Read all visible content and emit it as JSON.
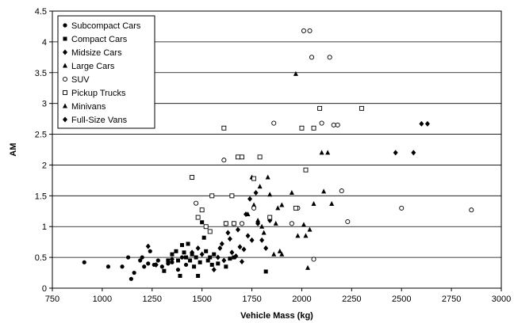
{
  "chart_data": {
    "type": "scatter",
    "xlabel": "Vehicle Mass (kg)",
    "ylabel": "AM",
    "xlim": [
      750,
      3000
    ],
    "ylim": [
      0,
      4.5
    ],
    "xticks": [
      "750",
      "1000",
      "1250",
      "1500",
      "1750",
      "2000",
      "2250",
      "2500",
      "2750",
      "3000"
    ],
    "yticks": [
      "0",
      "0.5",
      "1",
      "1.5",
      "2",
      "2.5",
      "3",
      "3.5",
      "4",
      "4.5"
    ],
    "grid": "horizontal",
    "legend_position": "top-left",
    "series": [
      {
        "name": "Subcompact Cars",
        "marker": "circle-filled",
        "points": [
          [
            910,
            0.42
          ],
          [
            1030,
            0.35
          ],
          [
            1100,
            0.35
          ],
          [
            1130,
            0.5
          ],
          [
            1145,
            0.15
          ],
          [
            1160,
            0.25
          ],
          [
            1190,
            0.45
          ],
          [
            1200,
            0.5
          ],
          [
            1210,
            0.35
          ],
          [
            1230,
            0.4
          ],
          [
            1240,
            0.6
          ],
          [
            1260,
            0.38
          ],
          [
            1280,
            0.45
          ],
          [
            1300,
            0.35
          ],
          [
            1330,
            0.4
          ],
          [
            1350,
            0.42
          ],
          [
            1380,
            0.3
          ],
          [
            1400,
            0.5
          ],
          [
            1420,
            0.38
          ]
        ]
      },
      {
        "name": "Compact Cars",
        "marker": "square-filled",
        "points": [
          [
            1310,
            0.28
          ],
          [
            1330,
            0.45
          ],
          [
            1350,
            0.55
          ],
          [
            1370,
            0.6
          ],
          [
            1380,
            0.45
          ],
          [
            1390,
            0.2
          ],
          [
            1400,
            0.7
          ],
          [
            1410,
            0.58
          ],
          [
            1420,
            0.5
          ],
          [
            1430,
            0.72
          ],
          [
            1440,
            0.45
          ],
          [
            1450,
            0.55
          ],
          [
            1460,
            0.35
          ],
          [
            1470,
            0.5
          ],
          [
            1480,
            0.2
          ],
          [
            1490,
            0.42
          ],
          [
            1500,
            1.07
          ],
          [
            1510,
            0.82
          ],
          [
            1520,
            0.6
          ],
          [
            1530,
            0.45
          ],
          [
            1540,
            0.5
          ],
          [
            1550,
            0.38
          ],
          [
            1560,
            0.55
          ],
          [
            1580,
            0.4
          ],
          [
            1620,
            0.35
          ],
          [
            1640,
            0.48
          ],
          [
            1660,
            0.5
          ],
          [
            1820,
            0.27
          ]
        ]
      },
      {
        "name": "Midsize Cars",
        "marker": "diamond-filled",
        "points": [
          [
            1230,
            0.68
          ],
          [
            1270,
            0.38
          ],
          [
            1350,
            0.47
          ],
          [
            1450,
            0.58
          ],
          [
            1480,
            0.65
          ],
          [
            1500,
            0.55
          ],
          [
            1560,
            0.3
          ],
          [
            1580,
            0.5
          ],
          [
            1590,
            0.65
          ],
          [
            1600,
            0.72
          ],
          [
            1610,
            0.45
          ],
          [
            1620,
            1.05
          ],
          [
            1630,
            0.9
          ],
          [
            1640,
            0.8
          ],
          [
            1650,
            0.58
          ],
          [
            1660,
            1.05
          ],
          [
            1670,
            0.52
          ],
          [
            1680,
            0.95
          ],
          [
            1690,
            0.67
          ],
          [
            1700,
            0.43
          ],
          [
            1710,
            0.63
          ],
          [
            1720,
            1.2
          ],
          [
            1730,
            0.85
          ],
          [
            1740,
            1.45
          ],
          [
            1750,
            0.78
          ],
          [
            1770,
            1.55
          ],
          [
            1780,
            1.05
          ],
          [
            1800,
            0.78
          ],
          [
            1820,
            0.65
          ],
          [
            1840,
            1.1
          ]
        ]
      },
      {
        "name": "Large Cars",
        "marker": "triangle-filled",
        "points": [
          [
            1730,
            1.2
          ],
          [
            1750,
            1.8
          ],
          [
            1760,
            1.35
          ],
          [
            1780,
            1.1
          ],
          [
            1790,
            1.65
          ],
          [
            1800,
            1.0
          ],
          [
            1810,
            0.9
          ],
          [
            1830,
            1.8
          ],
          [
            1860,
            0.55
          ],
          [
            1880,
            1.3
          ],
          [
            1890,
            0.6
          ],
          [
            1900,
            0.55
          ],
          [
            1950,
            1.55
          ],
          [
            1970,
            3.48
          ],
          [
            1980,
            0.85
          ],
          [
            2020,
            0.85
          ],
          [
            2040,
            0.95
          ]
        ]
      },
      {
        "name": "SUV",
        "marker": "circle-open",
        "points": [
          [
            1470,
            1.38
          ],
          [
            1610,
            2.08
          ],
          [
            1700,
            1.05
          ],
          [
            1760,
            1.3
          ],
          [
            1860,
            2.68
          ],
          [
            1950,
            1.05
          ],
          [
            1980,
            1.3
          ],
          [
            2010,
            4.18
          ],
          [
            2040,
            4.18
          ],
          [
            2050,
            3.75
          ],
          [
            2060,
            0.47
          ],
          [
            2100,
            2.68
          ],
          [
            2140,
            3.75
          ],
          [
            2160,
            2.65
          ],
          [
            2180,
            2.65
          ],
          [
            2200,
            1.58
          ],
          [
            2230,
            1.08
          ],
          [
            2500,
            1.3
          ],
          [
            2850,
            1.27
          ]
        ]
      },
      {
        "name": "Pickup Trucks",
        "marker": "square-open",
        "points": [
          [
            1450,
            1.8
          ],
          [
            1480,
            1.15
          ],
          [
            1500,
            1.27
          ],
          [
            1520,
            1.0
          ],
          [
            1540,
            0.92
          ],
          [
            1550,
            1.5
          ],
          [
            1610,
            2.6
          ],
          [
            1620,
            1.05
          ],
          [
            1650,
            1.5
          ],
          [
            1660,
            1.05
          ],
          [
            1680,
            2.13
          ],
          [
            1700,
            2.13
          ],
          [
            1760,
            1.78
          ],
          [
            1790,
            2.13
          ],
          [
            1840,
            1.15
          ],
          [
            1970,
            1.3
          ],
          [
            2000,
            2.6
          ],
          [
            2020,
            1.92
          ],
          [
            2060,
            2.6
          ],
          [
            2090,
            2.92
          ],
          [
            2300,
            2.92
          ]
        ]
      },
      {
        "name": "Minivans",
        "marker": "triangle-filled",
        "points": [
          [
            1840,
            1.52
          ],
          [
            1870,
            1.05
          ],
          [
            1900,
            1.35
          ],
          [
            2010,
            1.03
          ],
          [
            2030,
            0.33
          ],
          [
            2060,
            1.37
          ],
          [
            2100,
            2.2
          ],
          [
            2110,
            1.57
          ],
          [
            2130,
            2.2
          ],
          [
            2150,
            1.37
          ]
        ]
      },
      {
        "name": "Full-Size Vans",
        "marker": "diamond-filled",
        "points": [
          [
            2470,
            2.2
          ],
          [
            2560,
            2.2
          ],
          [
            2600,
            2.67
          ],
          [
            2630,
            2.67
          ]
        ]
      }
    ]
  }
}
